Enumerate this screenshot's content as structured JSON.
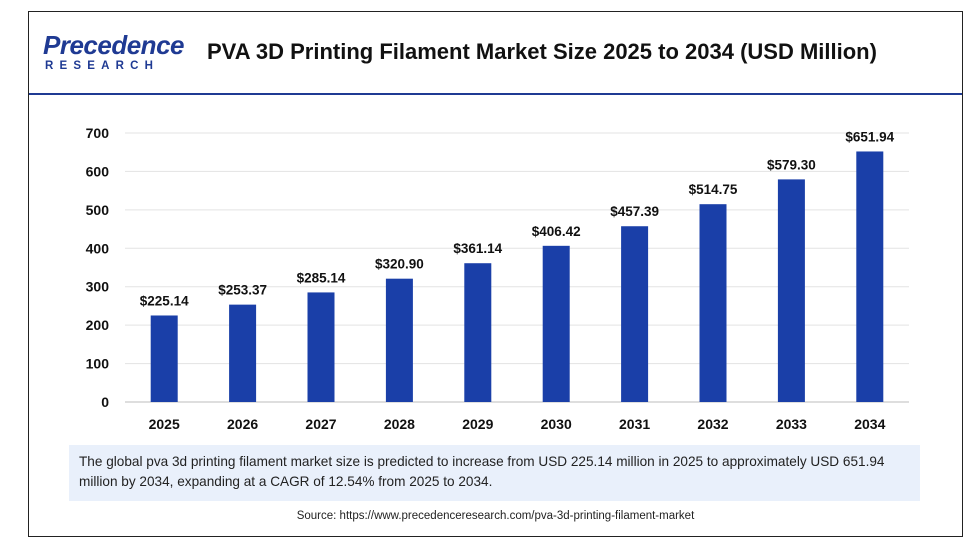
{
  "header": {
    "logo_main": "Precedence",
    "logo_sub": "RESEARCH",
    "title": "PVA 3D Printing Filament Market Size 2025 to 2034 (USD Million)"
  },
  "chart_data": {
    "type": "bar",
    "title": "PVA 3D Printing Filament Market Size 2025 to 2034 (USD Million)",
    "xlabel": "",
    "ylabel": "",
    "categories": [
      "2025",
      "2026",
      "2027",
      "2028",
      "2029",
      "2030",
      "2031",
      "2032",
      "2033",
      "2034"
    ],
    "values": [
      225.14,
      253.37,
      285.14,
      320.9,
      361.14,
      406.42,
      457.39,
      514.75,
      579.3,
      651.94
    ],
    "value_labels": [
      "$225.14",
      "$253.37",
      "$285.14",
      "$320.90",
      "$361.14",
      "$406.42",
      "$457.39",
      "$514.75",
      "$579.30",
      "$651.94"
    ],
    "yticks": [
      0,
      100,
      200,
      300,
      400,
      500,
      600,
      700
    ],
    "ylim": [
      0,
      700
    ],
    "grid": true,
    "bar_color": "#1a3fa8"
  },
  "note": {
    "text": "The global pva 3d printing filament market size is predicted to increase from USD 225.14 million in 2025 to approximately USD 651.94 million by 2034, expanding at a CAGR of 12.54% from 2025 to 2034."
  },
  "source": {
    "text": "Source: https://www.precedenceresearch.com/pva-3d-printing-filament-market"
  }
}
